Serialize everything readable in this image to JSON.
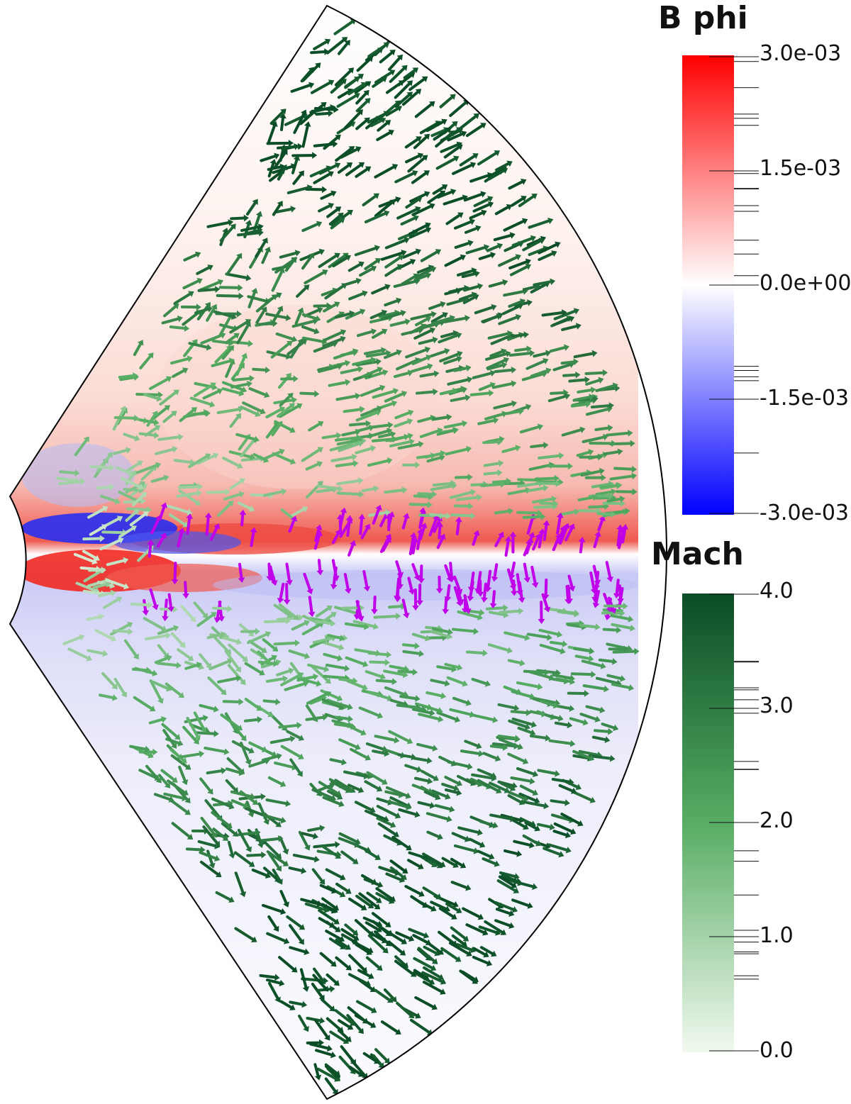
{
  "colorbars": {
    "bphi": {
      "title": "B phi",
      "min": -0.003,
      "max": 0.003,
      "tick_labels": [
        "3.0e-03",
        "1.5e-03",
        "0.0e+00",
        "-1.5e-03",
        "-3.0e-03"
      ],
      "colors": [
        "#ff0000",
        "#ffffff",
        "#0000ff"
      ]
    },
    "mach": {
      "title": "Mach",
      "min": 0.0,
      "max": 4.0,
      "tick_labels": [
        "4.0",
        "3.0",
        "2.0",
        "1.0",
        "0.0"
      ],
      "colors": [
        "#0a4d26",
        "#57ad63",
        "#f2f9f0"
      ]
    }
  },
  "field_colors": {
    "disk_arrows": "#c000e8",
    "outline": "#000000"
  }
}
